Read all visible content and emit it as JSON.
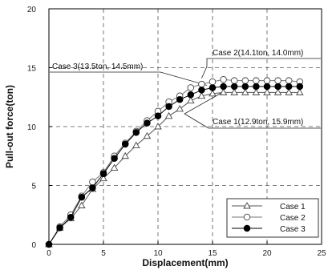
{
  "chart_data": {
    "type": "line",
    "xlabel": "Displacement(mm)",
    "ylabel": "Pull-out force(ton)",
    "xlim": [
      0,
      25
    ],
    "ylim": [
      0,
      20
    ],
    "x_ticks": [
      "0",
      "5",
      "10",
      "15",
      "20",
      "25"
    ],
    "y_ticks": [
      "0",
      "5",
      "10",
      "15",
      "20"
    ],
    "grid": true,
    "legend_position": "bottom-right",
    "x": [
      0,
      1,
      2,
      3,
      4,
      5,
      6,
      7,
      8,
      9,
      10,
      11,
      12,
      13,
      14,
      15,
      16,
      17,
      18,
      19,
      20,
      21,
      22,
      23
    ],
    "series": [
      {
        "name": "Case 1",
        "marker": "triangle-open",
        "values": [
          0,
          1.4,
          2.2,
          3.3,
          4.7,
          5.6,
          6.5,
          7.5,
          8.4,
          9.2,
          10.0,
          10.9,
          11.5,
          12.2,
          12.6,
          12.8,
          12.9,
          12.9,
          12.9,
          12.9,
          12.9,
          12.9,
          12.9,
          12.9
        ]
      },
      {
        "name": "Case 2",
        "marker": "circle-open",
        "values": [
          0,
          1.5,
          2.5,
          4.1,
          5.3,
          6.1,
          7.5,
          8.6,
          9.6,
          10.5,
          11.3,
          12.1,
          12.6,
          13.3,
          13.6,
          13.8,
          14.0,
          13.9,
          13.9,
          13.9,
          13.9,
          13.9,
          13.9,
          13.8
        ]
      },
      {
        "name": "Case 3",
        "marker": "circle-filled",
        "values": [
          0,
          1.4,
          2.3,
          4.0,
          4.8,
          6.0,
          7.3,
          8.5,
          9.5,
          10.3,
          10.9,
          11.7,
          12.3,
          12.7,
          13.1,
          13.3,
          13.4,
          13.4,
          13.4,
          13.4,
          13.4,
          13.4,
          13.4,
          13.4
        ]
      }
    ],
    "annotations": [
      {
        "text": "Case 2(14.1ton, 14.0mm)",
        "x": 14.0,
        "y": 14.1
      },
      {
        "text": "Case 3(13.5ton, 14.5mm)",
        "x": 14.5,
        "y": 13.5
      },
      {
        "text": "Case 1(12.9ton, 15.9mm)",
        "x": 15.9,
        "y": 12.9
      }
    ]
  }
}
